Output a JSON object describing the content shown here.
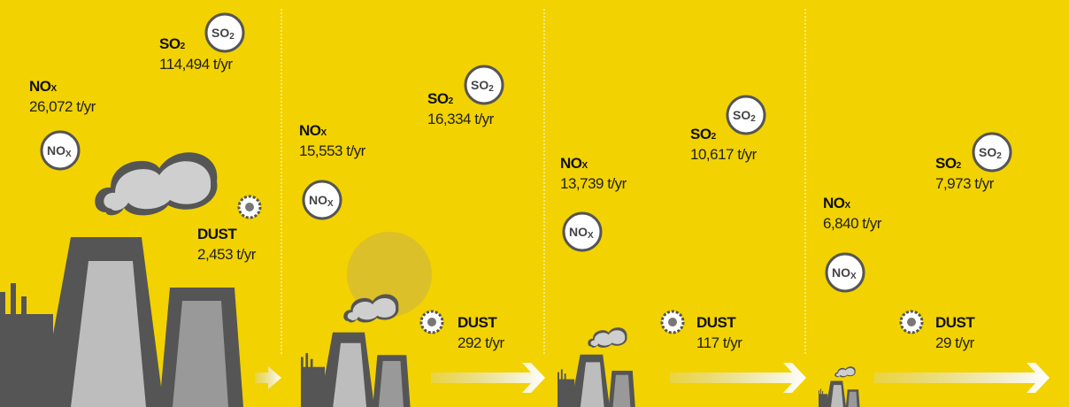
{
  "panels": [
    {
      "nox": {
        "label": "NO",
        "sub": "X",
        "value": "26,072 t/yr"
      },
      "so2": {
        "label": "SO",
        "sub": "2",
        "value": "114,494 t/yr"
      },
      "dust": {
        "label": "DUST",
        "value": "2,453 t/yr"
      }
    },
    {
      "nox": {
        "label": "NO",
        "sub": "X",
        "value": "15,553 t/yr"
      },
      "so2": {
        "label": "SO",
        "sub": "2",
        "value": "16,334 t/yr"
      },
      "dust": {
        "label": "DUST",
        "value": "292 t/yr"
      }
    },
    {
      "nox": {
        "label": "NO",
        "sub": "X",
        "value": "13,739 t/yr"
      },
      "so2": {
        "label": "SO",
        "sub": "2",
        "value": "10,617 t/yr"
      },
      "dust": {
        "label": "DUST",
        "value": "117 t/yr"
      }
    },
    {
      "nox": {
        "label": "NO",
        "sub": "X",
        "value": "6,840 t/yr"
      },
      "so2": {
        "label": "SO",
        "sub": "2",
        "value": "7,973 t/yr"
      },
      "dust": {
        "label": "DUST",
        "value": "29 t/yr"
      }
    }
  ]
}
